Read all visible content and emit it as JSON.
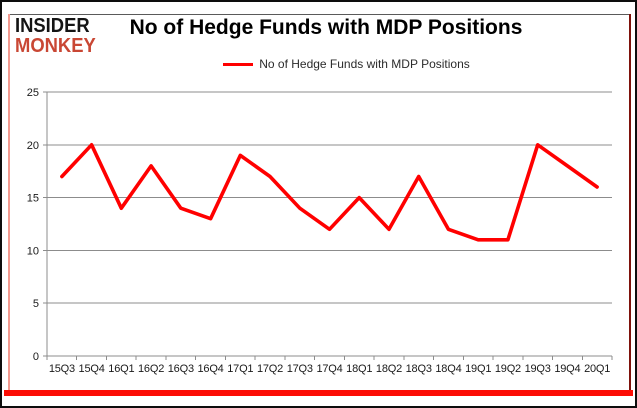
{
  "logo": {
    "line1": "INSIDER",
    "line2": "MONKEY"
  },
  "header": {
    "title": "No of Hedge Funds with MDP Positions"
  },
  "legend": {
    "label": "No of Hedge Funds with MDP Positions",
    "swatch_color": "#ff0000"
  },
  "colors": {
    "line": "#ff0000",
    "grid": "#8c8c8c",
    "axis_text": "#1a1a1a",
    "logo_black": "#141414",
    "logo_red": "#c94734",
    "frame_red": "#fc0d05"
  },
  "chart_data": {
    "type": "line",
    "title": "No of Hedge Funds with MDP Positions",
    "categories": [
      "15Q3",
      "15Q4",
      "16Q1",
      "16Q2",
      "16Q3",
      "16Q4",
      "17Q1",
      "17Q2",
      "17Q3",
      "17Q4",
      "18Q1",
      "18Q2",
      "18Q3",
      "18Q4",
      "19Q1",
      "19Q2",
      "19Q3",
      "19Q4",
      "20Q1"
    ],
    "series": [
      {
        "name": "No of Hedge Funds with MDP Positions",
        "values": [
          17,
          20,
          14,
          18,
          14,
          13,
          19,
          17,
          14,
          12,
          15,
          12,
          17,
          12,
          11,
          11,
          20,
          18,
          16
        ]
      }
    ],
    "xlabel": "",
    "ylabel": "",
    "ylim": [
      0,
      25
    ],
    "yticks": [
      0,
      5,
      10,
      15,
      20,
      25
    ],
    "grid": "horizontal",
    "legend_position": "top-center",
    "line_color": "#ff0000",
    "line_width": 3.6
  }
}
